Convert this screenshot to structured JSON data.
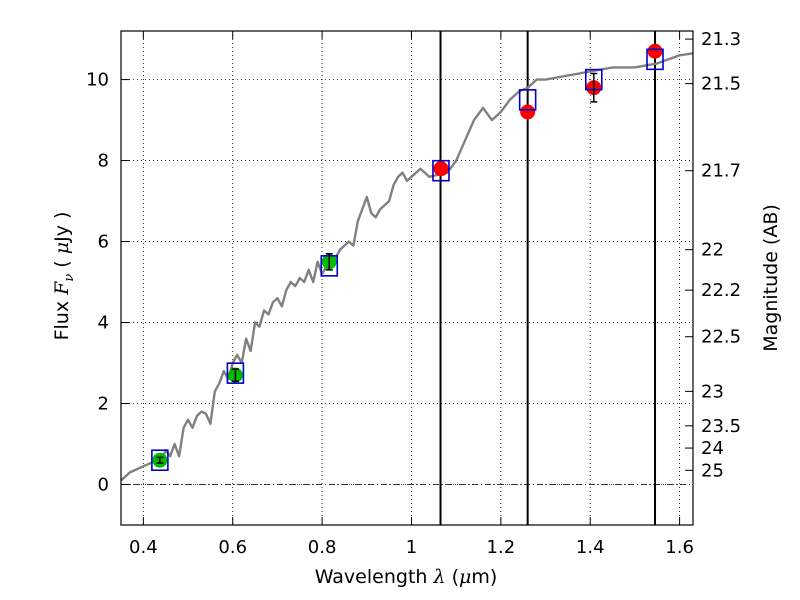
{
  "chart_data": {
    "type": "scatter",
    "xlabel": "Wavelength",
    "xlabel_symbol": "λ",
    "xlabel_unit_open": "(",
    "xlabel_unit_mu": "μ",
    "xlabel_unit_rest": "m)",
    "ylabel": "Flux",
    "ylabel_symbol": "F",
    "ylabel_subscript": "ν",
    "ylabel_unit_open": "(",
    "ylabel_unit_mu": "μ",
    "ylabel_unit_rest": "Jy )",
    "y2label": "Magnitude (AB)",
    "xlim": [
      0.35,
      1.63
    ],
    "ylim": [
      -1,
      11.2
    ],
    "grid": true,
    "xticks": [
      0.4,
      0.6,
      0.8,
      1.0,
      1.2,
      1.4,
      1.6
    ],
    "xtick_labels": [
      "0.4",
      "0.6",
      "0.8",
      "1",
      "1.2",
      "1.4",
      "1.6"
    ],
    "yticks": [
      0,
      2,
      4,
      6,
      8,
      10
    ],
    "ytick_labels": [
      "0",
      "2",
      "4",
      "6",
      "8",
      "10"
    ],
    "magnitude_ticks": [
      {
        "label": "21.3",
        "flux": 11.0
      },
      {
        "label": "21.5",
        "flux": 9.9
      },
      {
        "label": "21.7",
        "flux": 7.75
      },
      {
        "label": "22",
        "flux": 5.8
      },
      {
        "label": "22.2",
        "flux": 4.8
      },
      {
        "label": "22.5",
        "flux": 3.65
      },
      {
        "label": "23",
        "flux": 2.3
      },
      {
        "label": "23.5",
        "flux": 1.45
      },
      {
        "label": "24",
        "flux": 0.9
      },
      {
        "label": "25",
        "flux": 0.35
      }
    ],
    "vertical_lines": [
      1.065,
      1.26,
      1.545
    ],
    "model_spectrum": {
      "color": "#808080",
      "x": [
        0.35,
        0.37,
        0.39,
        0.41,
        0.43,
        0.44,
        0.45,
        0.46,
        0.47,
        0.48,
        0.49,
        0.5,
        0.51,
        0.52,
        0.53,
        0.54,
        0.55,
        0.56,
        0.57,
        0.58,
        0.59,
        0.6,
        0.61,
        0.62,
        0.63,
        0.64,
        0.65,
        0.66,
        0.67,
        0.68,
        0.69,
        0.7,
        0.71,
        0.72,
        0.73,
        0.74,
        0.75,
        0.76,
        0.77,
        0.78,
        0.79,
        0.8,
        0.81,
        0.82,
        0.83,
        0.84,
        0.85,
        0.86,
        0.87,
        0.88,
        0.89,
        0.9,
        0.91,
        0.92,
        0.93,
        0.94,
        0.95,
        0.96,
        0.97,
        0.98,
        0.99,
        1.0,
        1.02,
        1.04,
        1.06,
        1.08,
        1.1,
        1.12,
        1.14,
        1.16,
        1.18,
        1.2,
        1.22,
        1.24,
        1.26,
        1.28,
        1.3,
        1.35,
        1.4,
        1.45,
        1.5,
        1.55,
        1.6,
        1.63
      ],
      "y": [
        0.1,
        0.3,
        0.4,
        0.5,
        0.6,
        0.55,
        0.85,
        0.7,
        1.0,
        0.7,
        1.4,
        1.6,
        1.4,
        1.7,
        1.8,
        1.75,
        1.5,
        2.3,
        2.5,
        2.8,
        2.6,
        3.0,
        3.2,
        3.0,
        3.6,
        3.3,
        4.0,
        3.9,
        4.3,
        4.2,
        4.5,
        4.6,
        4.4,
        4.8,
        5.0,
        4.9,
        5.1,
        5.0,
        5.3,
        5.0,
        5.5,
        5.2,
        5.4,
        5.5,
        5.6,
        5.8,
        5.9,
        6.0,
        5.9,
        6.5,
        6.8,
        7.1,
        6.7,
        6.6,
        6.8,
        6.9,
        7.0,
        7.4,
        7.6,
        7.7,
        7.5,
        7.6,
        7.8,
        7.6,
        7.65,
        7.7,
        8.0,
        8.5,
        9.0,
        9.3,
        9.0,
        9.2,
        9.5,
        9.7,
        9.8,
        10.0,
        10.0,
        10.1,
        10.2,
        10.3,
        10.3,
        10.4,
        10.6,
        10.65
      ]
    },
    "series": [
      {
        "marker": "circle",
        "color": "#00bb00",
        "x": [
          0.437,
          0.606,
          0.816
        ],
        "y": [
          0.6,
          2.7,
          5.5
        ],
        "yerr": [
          0.07,
          0.15,
          0.2
        ]
      },
      {
        "marker": "circle",
        "color": "#ff0000",
        "x": [
          1.066,
          1.26,
          1.408,
          1.545
        ],
        "y": [
          7.8,
          9.2,
          9.8,
          10.7
        ],
        "yerr": [
          0.0,
          0.0,
          0.35,
          0.0
        ]
      },
      {
        "marker": "square",
        "color": "#0000cc",
        "x": [
          0.437,
          0.606,
          0.816,
          1.066,
          1.26,
          1.408,
          1.545
        ],
        "y": [
          0.6,
          2.75,
          5.4,
          7.75,
          9.5,
          10.0,
          10.5
        ]
      }
    ]
  }
}
